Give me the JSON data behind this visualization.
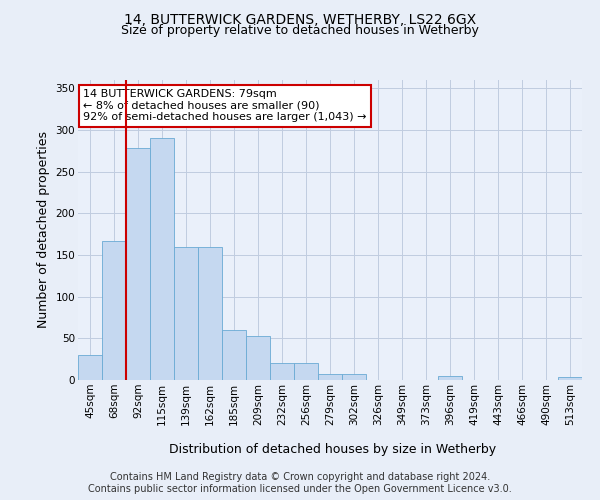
{
  "title": "14, BUTTERWICK GARDENS, WETHERBY, LS22 6GX",
  "subtitle": "Size of property relative to detached houses in Wetherby",
  "xlabel": "Distribution of detached houses by size in Wetherby",
  "ylabel": "Number of detached properties",
  "categories": [
    "45sqm",
    "68sqm",
    "92sqm",
    "115sqm",
    "139sqm",
    "162sqm",
    "185sqm",
    "209sqm",
    "232sqm",
    "256sqm",
    "279sqm",
    "302sqm",
    "326sqm",
    "349sqm",
    "373sqm",
    "396sqm",
    "419sqm",
    "443sqm",
    "466sqm",
    "490sqm",
    "513sqm"
  ],
  "bar_heights": [
    30,
    167,
    278,
    290,
    160,
    160,
    60,
    53,
    20,
    20,
    7,
    7,
    0,
    0,
    0,
    5,
    0,
    0,
    0,
    0,
    4
  ],
  "bar_color": "#c5d8f0",
  "bar_edge_color": "#6aaad4",
  "red_line_color": "#cc0000",
  "annotation_text": "14 BUTTERWICK GARDENS: 79sqm\n← 8% of detached houses are smaller (90)\n92% of semi-detached houses are larger (1,043) →",
  "annotation_box_color": "#ffffff",
  "annotation_box_edge_color": "#cc0000",
  "ylim": [
    0,
    360
  ],
  "yticks": [
    0,
    50,
    100,
    150,
    200,
    250,
    300,
    350
  ],
  "footer_text": "Contains HM Land Registry data © Crown copyright and database right 2024.\nContains public sector information licensed under the Open Government Licence v3.0.",
  "bg_color": "#e8eef8",
  "plot_bg_color": "#eaf0fa",
  "grid_color": "#c0cce0",
  "title_fontsize": 10,
  "subtitle_fontsize": 9,
  "axis_label_fontsize": 9,
  "tick_fontsize": 7.5,
  "footer_fontsize": 7,
  "annotation_fontsize": 8
}
